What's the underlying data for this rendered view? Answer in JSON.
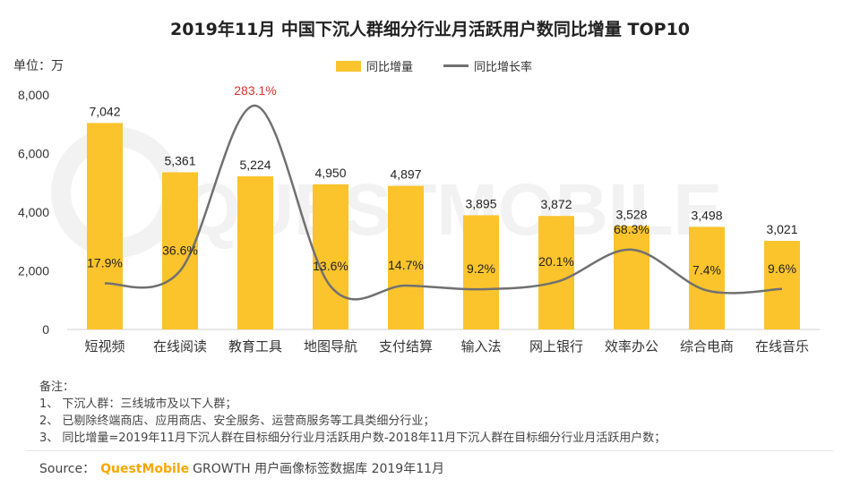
{
  "title": "2019年11月 中国下沉人群细分行业月活跃用户数同比增量 TOP10",
  "unit_label": "单位：万",
  "colors": {
    "bar": "#FBC42C",
    "line": "#707070",
    "peak_label": "#E0312F",
    "watermark": "#f2f2f2"
  },
  "chart_data": {
    "type": "bar",
    "title": "2019年11月 中国下沉人群细分行业月活跃用户数同比增量 TOP10",
    "xlabel": "",
    "ylabel": "万",
    "ylim": [
      0,
      8000
    ],
    "yticks": [
      "0",
      "2,000",
      "4,000",
      "6,000",
      "8,000"
    ],
    "ytick_values": [
      0,
      2000,
      4000,
      6000,
      8000
    ],
    "categories": [
      "短视频",
      "在线阅读",
      "教育工具",
      "地图导航",
      "支付结算",
      "输入法",
      "网上银行",
      "效率办公",
      "综合电商",
      "在线音乐"
    ],
    "series": [
      {
        "name": "同比增量",
        "type": "bar",
        "values": [
          7042,
          5361,
          5224,
          4950,
          4897,
          3895,
          3872,
          3528,
          3498,
          3021
        ],
        "labels": [
          "7,042",
          "5,361",
          "5,224",
          "4,950",
          "4,897",
          "3,895",
          "3,872",
          "3,528",
          "3,498",
          "3,021"
        ]
      },
      {
        "name": "同比增长率",
        "type": "line",
        "values": [
          17.9,
          36.6,
          283.1,
          13.6,
          14.7,
          9.2,
          20.1,
          68.3,
          7.4,
          9.6
        ],
        "labels": [
          "17.9%",
          "36.6%",
          "283.1%",
          "13.6%",
          "14.7%",
          "9.2%",
          "20.1%",
          "68.3%",
          "7.4%",
          "9.6%"
        ]
      }
    ],
    "legend": [
      "同比增量",
      "同比增长率"
    ],
    "legend_position": "top-center",
    "grid": false
  },
  "watermark_text": "QUESTMOBILE",
  "notes": {
    "heading": "备注：",
    "items": [
      "1、 下沉人群：三线城市及以下人群；",
      "2、 已剔除终端商店、应用商店、安全服务、运营商服务等工具类细分行业；",
      "3、 同比增量=2019年11月下沉人群在目标细分行业月活跃用户数-2018年11月下沉人群在目标细分行业月活跃用户数；"
    ]
  },
  "source": {
    "label": "Source：",
    "brand": "QuestMobile",
    "text": "GROWTH 用户画像标签数据库  2019年11月"
  }
}
